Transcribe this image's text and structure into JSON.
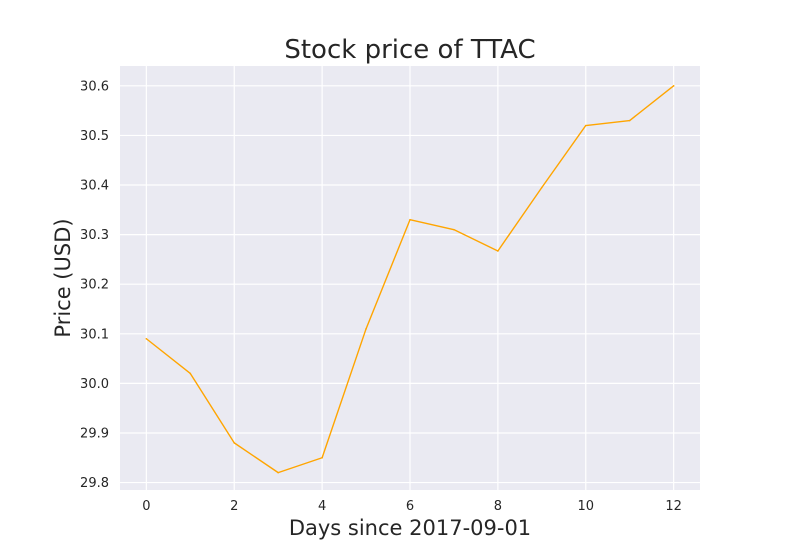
{
  "chart_data": {
    "type": "line",
    "title": "Stock price of TTAC",
    "xlabel": "Days since 2017-09-01",
    "ylabel": "Price (USD)",
    "xlim": [
      -0.6,
      12.6
    ],
    "ylim": [
      29.785,
      30.64
    ],
    "xticks": [
      0,
      2,
      4,
      6,
      8,
      10,
      12
    ],
    "xtick_labels": [
      "0",
      "2",
      "4",
      "6",
      "8",
      "10",
      "12"
    ],
    "yticks": [
      29.8,
      29.9,
      30.0,
      30.1,
      30.2,
      30.3,
      30.4,
      30.5,
      30.6
    ],
    "ytick_labels": [
      "29.8",
      "29.9",
      "30.0",
      "30.1",
      "30.2",
      "30.3",
      "30.4",
      "30.5",
      "30.6"
    ],
    "grid": true,
    "background_color": "#eaeaf2",
    "series": [
      {
        "color": "#ffa500",
        "x": [
          0,
          1,
          2,
          3,
          4,
          5,
          6,
          7,
          8,
          9,
          10,
          11,
          12
        ],
        "y": [
          30.09,
          30.02,
          29.88,
          29.82,
          29.85,
          30.11,
          30.33,
          30.31,
          30.267,
          30.395,
          30.52,
          30.53,
          30.6
        ]
      }
    ]
  }
}
